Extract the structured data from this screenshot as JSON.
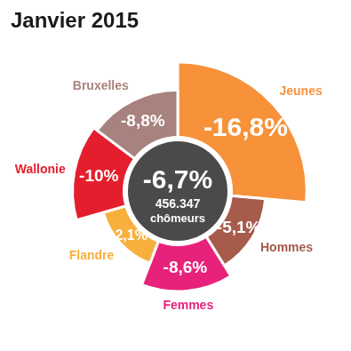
{
  "chart_data": {
    "type": "polar",
    "title": "Janvier 2015",
    "categories": [
      "Jeunes",
      "Hommes",
      "Femmes",
      "Flandre",
      "Wallonie",
      "Bruxelles"
    ],
    "values": [
      -16.8,
      -5.1,
      -8.6,
      -2.1,
      -10,
      -8.8
    ],
    "value_labels": [
      "-16,8%",
      "-5,1%",
      "-8,6%",
      "-2,1%",
      "-10%",
      "-8,8%"
    ],
    "colors": [
      "#f7923a",
      "#a65b4b",
      "#e8227a",
      "#f8b03d",
      "#e41e2d",
      "#a8827e"
    ],
    "ylim": [
      20,
      -18
    ],
    "tick_labels": false,
    "grid": false,
    "data_labels": true,
    "annotations": [
      "-6,7%",
      "456.347",
      "chômeurs"
    ]
  }
}
